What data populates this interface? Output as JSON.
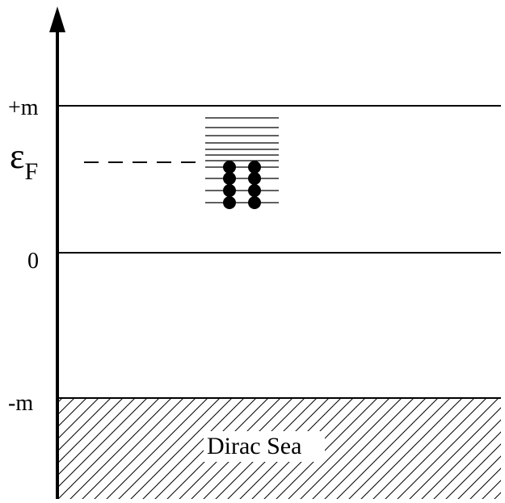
{
  "diagram": {
    "labels": {
      "plus_m": "+m",
      "fermi_symbol": "ε",
      "fermi_subscript": "F",
      "zero": "0",
      "minus_m": "-m",
      "dirac_sea": "Dirac Sea"
    },
    "occupied_states": {
      "columns": 2,
      "rows": 4
    },
    "empty_level_lines": 7,
    "colors": {
      "ink": "#000000",
      "background": "#ffffff"
    }
  }
}
